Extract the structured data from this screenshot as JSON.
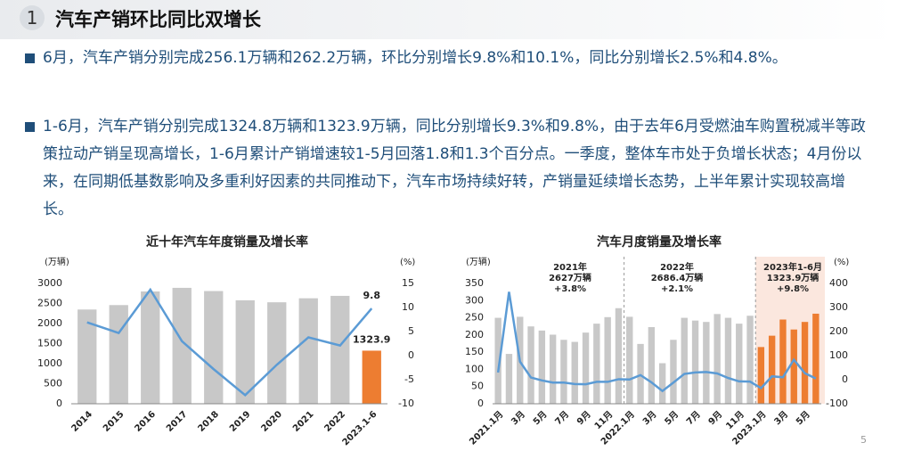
{
  "header": {
    "number": "1",
    "title": "汽车产销环比同比双增长"
  },
  "bullets": [
    "6月，汽车产销分别完成256.1万辆和262.2万辆，环比分别增长9.8%和10.1%，同比分别增长2.5%和4.8%。",
    "1-6月，汽车产销分别完成1324.8万辆和1323.9万辆，同比分别增长9.3%和9.8%，由于去年6月受燃油车购置税减半等政策拉动产销呈现高增长，1-6月累计产销增速较1-5月回落1.8和1.3个百分点。一季度，整体车市处于负增长状态；4月份以来，在同期低基数影响及多重利好因素的共同推动下，汽车市场持续好转，产销量延续增长态势，上半年累计实现较高增长。"
  ],
  "page_number": "5",
  "chart_data": [
    {
      "type": "combo",
      "title": "近十年汽车年度销量及增长率",
      "y_unit": "(万辆)",
      "y2_unit": "(%)",
      "categories": [
        "2014",
        "2015",
        "2016",
        "2017",
        "2018",
        "2019",
        "2020",
        "2021",
        "2022",
        "2023.1-6"
      ],
      "series": [
        {
          "type": "bar",
          "colors": [
            "#c8c8c8",
            "#c8c8c8",
            "#c8c8c8",
            "#c8c8c8",
            "#c8c8c8",
            "#c8c8c8",
            "#c8c8c8",
            "#c8c8c8",
            "#c8c8c8",
            "#ed7d31"
          ],
          "values": [
            2350,
            2460,
            2800,
            2890,
            2810,
            2580,
            2530,
            2630,
            2690,
            1323.9
          ]
        },
        {
          "type": "line",
          "axis": "y2",
          "color": "#5b9bd5",
          "values": [
            6.9,
            4.7,
            13.7,
            3.0,
            -2.8,
            -8.2,
            -1.9,
            3.8,
            2.1,
            9.8
          ]
        }
      ],
      "label_last": true,
      "ylim": [
        0,
        3000
      ],
      "yticks": [
        0,
        500,
        1000,
        1500,
        2000,
        2500,
        3000
      ],
      "y2lim": [
        -10,
        15
      ],
      "y2ticks": [
        -10,
        -5,
        0,
        5,
        10,
        15
      ]
    },
    {
      "type": "combo",
      "title": "汽车月度销量及增长率",
      "y_unit": "(万辆)",
      "y2_unit": "(%)",
      "categories": [
        "2021.1月",
        null,
        "3月",
        null,
        "5月",
        null,
        "7月",
        null,
        "9月",
        null,
        "11月",
        null,
        "2022.1月",
        null,
        "3月",
        null,
        "5月",
        null,
        "7月",
        null,
        "9月",
        null,
        "11月",
        null,
        "2023.1月",
        null,
        "3月",
        null,
        "5月",
        null
      ],
      "series": [
        {
          "type": "bar",
          "colors": [
            "#c8c8c8",
            "#c8c8c8",
            "#c8c8c8",
            "#c8c8c8",
            "#c8c8c8",
            "#c8c8c8",
            "#c8c8c8",
            "#c8c8c8",
            "#c8c8c8",
            "#c8c8c8",
            "#c8c8c8",
            "#c8c8c8",
            "#c8c8c8",
            "#c8c8c8",
            "#c8c8c8",
            "#c8c8c8",
            "#c8c8c8",
            "#c8c8c8",
            "#c8c8c8",
            "#c8c8c8",
            "#c8c8c8",
            "#c8c8c8",
            "#c8c8c8",
            "#c8c8c8",
            "#ed7d31",
            "#ed7d31",
            "#ed7d31",
            "#ed7d31",
            "#ed7d31",
            "#ed7d31"
          ],
          "values": [
            250,
            145,
            253,
            225,
            213,
            201,
            186,
            180,
            207,
            233,
            252,
            278,
            253,
            174,
            223,
            118,
            186,
            250,
            242,
            238,
            261,
            250,
            233,
            256,
            165,
            198,
            245,
            216,
            238,
            262
          ]
        },
        {
          "type": "line",
          "axis": "y2",
          "color": "#5b9bd5",
          "values": [
            30,
            365,
            75,
            9,
            -3,
            -12,
            -12,
            -18,
            -19,
            -9,
            -9,
            2,
            1,
            19,
            -11,
            -47,
            -12,
            24,
            30,
            32,
            26,
            7,
            -7,
            -8,
            -35,
            14,
            10,
            83,
            27,
            5
          ]
        }
      ],
      "annotations": [
        [
          "2021年",
          "2627万辆",
          "+3.8%"
        ],
        [
          "2022年",
          "2686.4万辆",
          "+2.1%"
        ],
        [
          "2023年1-6月",
          "1323.9万辆",
          "+9.8%"
        ]
      ],
      "ylim": [
        0,
        350
      ],
      "yticks": [
        0,
        50,
        100,
        150,
        200,
        250,
        300,
        350
      ],
      "y2lim": [
        -100,
        400
      ],
      "y2ticks": [
        -100,
        0,
        100,
        200,
        300,
        400
      ]
    }
  ]
}
